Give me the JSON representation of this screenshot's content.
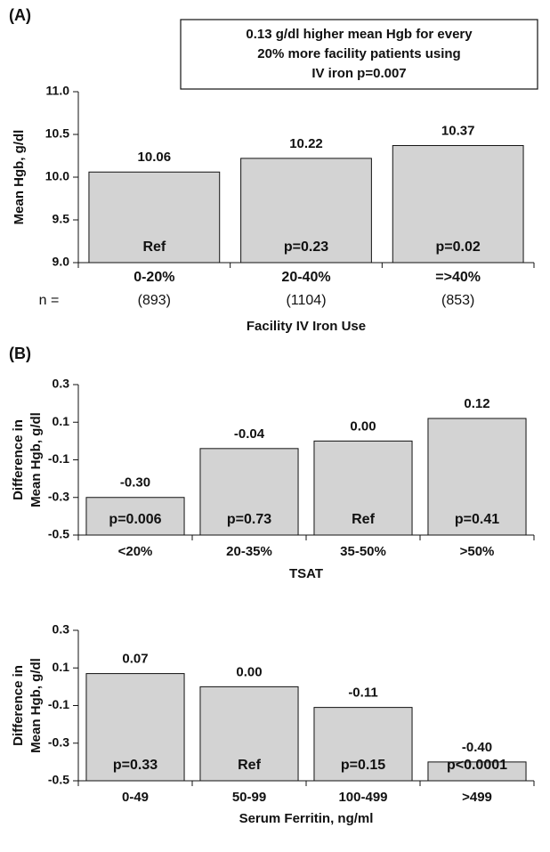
{
  "chart_data": [
    {
      "type": "bar",
      "panel_label": "(A)",
      "annotation": [
        "0.13 g/dl higher mean Hgb for every",
        "20% more facility patients using",
        "IV iron  p=0.007"
      ],
      "ylabel": "Mean Hgb, g/dl",
      "xlabel": "Facility IV Iron Use",
      "categories": [
        "0-20%",
        "20-40%",
        "=>40%"
      ],
      "values": [
        10.06,
        10.22,
        10.37
      ],
      "bar_labels": [
        "Ref",
        "p=0.23",
        "p=0.02"
      ],
      "n_label": "n =",
      "n_values": [
        "(893)",
        "(1104)",
        "(853)"
      ],
      "color": "#d3d3d3",
      "ylim": [
        9,
        11
      ],
      "yticks": [
        {
          "value": 9,
          "label": "9.0"
        },
        9.5,
        {
          "value": 10,
          "label": "10.0"
        },
        10.5,
        {
          "value": 11,
          "label": "11.0"
        }
      ]
    },
    {
      "type": "bar",
      "panel_label": "(B)",
      "ylabel": [
        "Difference in",
        "Mean Hgb, g/dl"
      ],
      "xlabel": "TSAT",
      "categories": [
        "<20%",
        "20-35%",
        "35-50%",
        ">50%"
      ],
      "values": [
        -0.3,
        -0.04,
        0,
        0.12
      ],
      "value_labels": [
        "-0.30",
        "-0.04",
        "0.00",
        "0.12"
      ],
      "bar_labels": [
        "p=0.006",
        "p=0.73",
        "Ref",
        "p=0.41"
      ],
      "color": "#d3d3d3",
      "ylim": [
        -0.5,
        0.3
      ],
      "yticks": [
        -0.5,
        -0.3,
        -0.1,
        0.1,
        0.3
      ]
    },
    {
      "type": "bar",
      "ylabel": [
        "Difference in",
        "Mean Hgb, g/dl"
      ],
      "xlabel": "Serum Ferritin, ng/ml",
      "categories": [
        "0-49",
        "50-99",
        "100-499",
        ">499"
      ],
      "values": [
        0.07,
        0,
        -0.11,
        -0.4
      ],
      "value_labels": [
        "0.07",
        "0.00",
        "-0.11",
        "-0.40"
      ],
      "bar_labels": [
        "p=0.33",
        "Ref",
        "p=0.15",
        "p<0.0001"
      ],
      "color": "#d3d3d3",
      "ylim": [
        -0.5,
        0.3
      ],
      "yticks": [
        -0.5,
        -0.3,
        -0.1,
        0.1,
        0.3
      ]
    }
  ]
}
